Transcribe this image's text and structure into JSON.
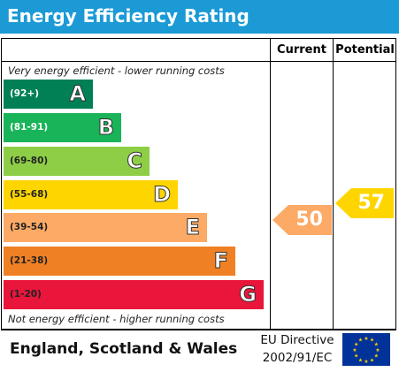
{
  "title": "Energy Efficiency Rating",
  "columns": {
    "current": "Current",
    "potential": "Potential"
  },
  "notes": {
    "top": "Very energy efficient - lower running costs",
    "bottom": "Not energy efficient - higher running costs"
  },
  "bands": [
    {
      "range": "(92+)",
      "letter": "A",
      "color": "#008054"
    },
    {
      "range": "(81-91)",
      "letter": "B",
      "color": "#19b459"
    },
    {
      "range": "(69-80)",
      "letter": "C",
      "color": "#8dce46"
    },
    {
      "range": "(55-68)",
      "letter": "D",
      "color": "#ffd500"
    },
    {
      "range": "(39-54)",
      "letter": "E",
      "color": "#fcaa65"
    },
    {
      "range": "(21-38)",
      "letter": "F",
      "color": "#ef8023"
    },
    {
      "range": "(1-20)",
      "letter": "G",
      "color": "#e9153b"
    }
  ],
  "ratings": {
    "current": {
      "value": "50",
      "band": "E",
      "color": "#fcaa65"
    },
    "potential": {
      "value": "57",
      "band": "D",
      "color": "#ffd500"
    }
  },
  "footer": {
    "region": "England, Scotland & Wales",
    "directive_line1": "EU Directive",
    "directive_line2": "2002/91/EC",
    "flag_icon": "eu-flag-icon",
    "flag_colors": {
      "field": "#003399",
      "stars": "#ffcc00"
    }
  }
}
